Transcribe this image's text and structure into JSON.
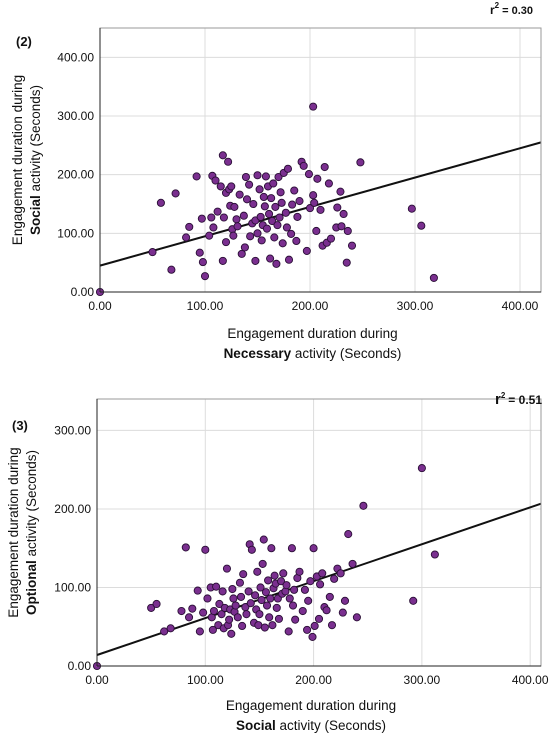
{
  "chart_data": [
    {
      "type": "scatter",
      "panel_label": "(2)",
      "r2_label": "r",
      "r2_sup": "2",
      "r2_value": "= 0.30",
      "xlabel_line1": "Engagement duration during",
      "xlabel_bold": "Necessary",
      "xlabel_rest": " activity (Seconds)",
      "ylabel_line1": "Engagement duration during",
      "ylabel_bold": "Social",
      "ylabel_rest": " activity (Seconds)",
      "xlim": [
        0,
        420
      ],
      "ylim": [
        0,
        450
      ],
      "x_ticks": [
        0,
        100,
        200,
        300,
        400
      ],
      "x_tick_labels": [
        "0.00",
        "100.00",
        "200.00",
        "300.00",
        "400.00"
      ],
      "y_ticks": [
        0,
        100,
        200,
        300,
        400
      ],
      "y_tick_labels": [
        "0.00",
        "100.00",
        "200.00",
        "300.00",
        "400.00"
      ],
      "grid": true,
      "marker_color": "#7a2f8f",
      "marker_edge": "#2a0f36",
      "fit_line": {
        "intercept": 45,
        "slope": 0.5
      },
      "points": [
        [
          0,
          0
        ],
        [
          50,
          68
        ],
        [
          58,
          152
        ],
        [
          68,
          38
        ],
        [
          72,
          168
        ],
        [
          82,
          93
        ],
        [
          85,
          111
        ],
        [
          92,
          197
        ],
        [
          95,
          67
        ],
        [
          97,
          125
        ],
        [
          98,
          51
        ],
        [
          100,
          27
        ],
        [
          104,
          96
        ],
        [
          106,
          127
        ],
        [
          107,
          198
        ],
        [
          108,
          110
        ],
        [
          110,
          190
        ],
        [
          112,
          137
        ],
        [
          115,
          180
        ],
        [
          117,
          233
        ],
        [
          117,
          53
        ],
        [
          118,
          127
        ],
        [
          120,
          169
        ],
        [
          120,
          85
        ],
        [
          122,
          222
        ],
        [
          123,
          175
        ],
        [
          124,
          147
        ],
        [
          125,
          180
        ],
        [
          126,
          107
        ],
        [
          127,
          96
        ],
        [
          128,
          145
        ],
        [
          130,
          124
        ],
        [
          131,
          112
        ],
        [
          133,
          166
        ],
        [
          135,
          65
        ],
        [
          137,
          130
        ],
        [
          138,
          76
        ],
        [
          139,
          196
        ],
        [
          140,
          158
        ],
        [
          142,
          183
        ],
        [
          143,
          95
        ],
        [
          145,
          117
        ],
        [
          146,
          150
        ],
        [
          148,
          122
        ],
        [
          148,
          53
        ],
        [
          150,
          199
        ],
        [
          150,
          100
        ],
        [
          152,
          175
        ],
        [
          153,
          128
        ],
        [
          154,
          88
        ],
        [
          155,
          114
        ],
        [
          156,
          162
        ],
        [
          157,
          146
        ],
        [
          158,
          197
        ],
        [
          159,
          108
        ],
        [
          160,
          180
        ],
        [
          161,
          133
        ],
        [
          162,
          57
        ],
        [
          163,
          160
        ],
        [
          164,
          121
        ],
        [
          165,
          185
        ],
        [
          166,
          93
        ],
        [
          167,
          145
        ],
        [
          168,
          48
        ],
        [
          169,
          114
        ],
        [
          170,
          196
        ],
        [
          171,
          127
        ],
        [
          172,
          170
        ],
        [
          173,
          152
        ],
        [
          174,
          83
        ],
        [
          175,
          203
        ],
        [
          177,
          135
        ],
        [
          178,
          110
        ],
        [
          179,
          210
        ],
        [
          180,
          55
        ],
        [
          182,
          99
        ],
        [
          183,
          149
        ],
        [
          185,
          173
        ],
        [
          187,
          87
        ],
        [
          188,
          128
        ],
        [
          190,
          155
        ],
        [
          192,
          222
        ],
        [
          194,
          215
        ],
        [
          197,
          70
        ],
        [
          199,
          201
        ],
        [
          200,
          143
        ],
        [
          203,
          316
        ],
        [
          203,
          165
        ],
        [
          204,
          152
        ],
        [
          206,
          104
        ],
        [
          207,
          193
        ],
        [
          210,
          140
        ],
        [
          212,
          79
        ],
        [
          214,
          213
        ],
        [
          216,
          84
        ],
        [
          218,
          185
        ],
        [
          220,
          91
        ],
        [
          225,
          110
        ],
        [
          226,
          144
        ],
        [
          229,
          171
        ],
        [
          230,
          112
        ],
        [
          232,
          133
        ],
        [
          235,
          50
        ],
        [
          236,
          104
        ],
        [
          240,
          79
        ],
        [
          248,
          221
        ],
        [
          297,
          142
        ],
        [
          306,
          113
        ],
        [
          318,
          24
        ]
      ]
    },
    {
      "type": "scatter",
      "panel_label": "(3)",
      "r2_label": "r",
      "r2_sup": "2",
      "r2_value": "= 0.51",
      "xlabel_line1": "Engagement duration during",
      "xlabel_bold": "Social",
      "xlabel_rest": " activity (Seconds)",
      "ylabel_line1": "Engagement duration during",
      "ylabel_bold": "Optional",
      "ylabel_rest": " activity (Seconds)",
      "xlim": [
        0,
        410
      ],
      "ylim": [
        0,
        340
      ],
      "x_ticks": [
        0,
        100,
        200,
        300,
        400
      ],
      "x_tick_labels": [
        "0.00",
        "100.00",
        "200.00",
        "300.00",
        "400.00"
      ],
      "y_ticks": [
        0,
        100,
        200,
        300
      ],
      "y_tick_labels": [
        "0.00",
        "100.00",
        "200.00",
        "300.00"
      ],
      "grid": true,
      "marker_color": "#7a2f8f",
      "marker_edge": "#2a0f36",
      "fit_line": {
        "intercept": 14,
        "slope": 0.47
      },
      "points": [
        [
          0,
          0
        ],
        [
          50,
          74
        ],
        [
          55,
          79
        ],
        [
          62,
          44
        ],
        [
          68,
          48
        ],
        [
          78,
          70
        ],
        [
          82,
          151
        ],
        [
          85,
          62
        ],
        [
          88,
          73
        ],
        [
          93,
          96
        ],
        [
          95,
          44
        ],
        [
          98,
          68
        ],
        [
          100,
          148
        ],
        [
          102,
          86
        ],
        [
          105,
          100
        ],
        [
          106,
          62
        ],
        [
          107,
          46
        ],
        [
          108,
          70
        ],
        [
          110,
          101
        ],
        [
          112,
          52
        ],
        [
          113,
          79
        ],
        [
          115,
          66
        ],
        [
          116,
          95
        ],
        [
          117,
          48
        ],
        [
          118,
          74
        ],
        [
          120,
          124
        ],
        [
          121,
          52
        ],
        [
          122,
          59
        ],
        [
          123,
          72
        ],
        [
          124,
          41
        ],
        [
          125,
          98
        ],
        [
          126,
          86
        ],
        [
          127,
          69
        ],
        [
          128,
          77
        ],
        [
          130,
          62
        ],
        [
          132,
          106
        ],
        [
          133,
          88
        ],
        [
          134,
          51
        ],
        [
          135,
          117
        ],
        [
          137,
          75
        ],
        [
          138,
          66
        ],
        [
          140,
          95
        ],
        [
          141,
          155
        ],
        [
          142,
          80
        ],
        [
          143,
          148
        ],
        [
          145,
          55
        ],
        [
          146,
          90
        ],
        [
          147,
          72
        ],
        [
          148,
          120
        ],
        [
          149,
          52
        ],
        [
          150,
          66
        ],
        [
          151,
          100
        ],
        [
          152,
          84
        ],
        [
          153,
          130
        ],
        [
          154,
          161
        ],
        [
          155,
          49
        ],
        [
          156,
          94
        ],
        [
          157,
          77
        ],
        [
          158,
          109
        ],
        [
          159,
          62
        ],
        [
          160,
          86
        ],
        [
          161,
          150
        ],
        [
          162,
          52
        ],
        [
          163,
          99
        ],
        [
          164,
          115
        ],
        [
          165,
          105
        ],
        [
          166,
          74
        ],
        [
          167,
          86
        ],
        [
          168,
          60
        ],
        [
          170,
          108
        ],
        [
          171,
          92
        ],
        [
          172,
          118
        ],
        [
          174,
          95
        ],
        [
          175,
          103
        ],
        [
          177,
          44
        ],
        [
          178,
          86
        ],
        [
          180,
          150
        ],
        [
          181,
          77
        ],
        [
          182,
          97
        ],
        [
          183,
          59
        ],
        [
          185,
          112
        ],
        [
          187,
          120
        ],
        [
          190,
          70
        ],
        [
          192,
          97
        ],
        [
          194,
          46
        ],
        [
          195,
          83
        ],
        [
          197,
          108
        ],
        [
          199,
          37
        ],
        [
          200,
          150
        ],
        [
          201,
          51
        ],
        [
          203,
          114
        ],
        [
          205,
          60
        ],
        [
          206,
          104
        ],
        [
          208,
          118
        ],
        [
          210,
          75
        ],
        [
          212,
          71
        ],
        [
          215,
          88
        ],
        [
          217,
          52
        ],
        [
          219,
          111
        ],
        [
          222,
          124
        ],
        [
          225,
          118
        ],
        [
          227,
          68
        ],
        [
          229,
          83
        ],
        [
          232,
          168
        ],
        [
          236,
          130
        ],
        [
          240,
          62
        ],
        [
          246,
          204
        ],
        [
          292,
          83
        ],
        [
          300,
          252
        ],
        [
          312,
          142
        ]
      ]
    }
  ]
}
